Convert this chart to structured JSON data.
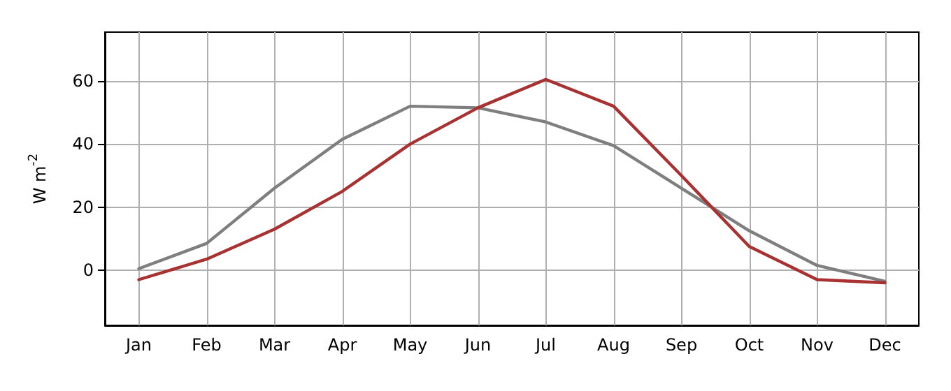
{
  "chart_data": {
    "type": "line",
    "ylabel": "W m$^{-2}$",
    "categories": [
      "Jan",
      "Feb",
      "Mar",
      "Apr",
      "May",
      "Jun",
      "Jul",
      "Aug",
      "Sep",
      "Oct",
      "Nov",
      "Dec"
    ],
    "series": [
      {
        "color": "#7f7f7f",
        "values": [
          0.5,
          8.5,
          26,
          41.5,
          52,
          51.5,
          47,
          39.5,
          26,
          12.5,
          1.5,
          -3.5
        ]
      },
      {
        "color": "#a83232",
        "values": [
          -3,
          3.5,
          13,
          25,
          40,
          51.5,
          60.5,
          52,
          30,
          7.5,
          -3,
          -4
        ]
      }
    ],
    "ylim": [
      -17.5,
      75.5
    ],
    "yticks": [
      0,
      20,
      40,
      60
    ],
    "grid": true,
    "marker": "none",
    "line_style": "solid"
  }
}
